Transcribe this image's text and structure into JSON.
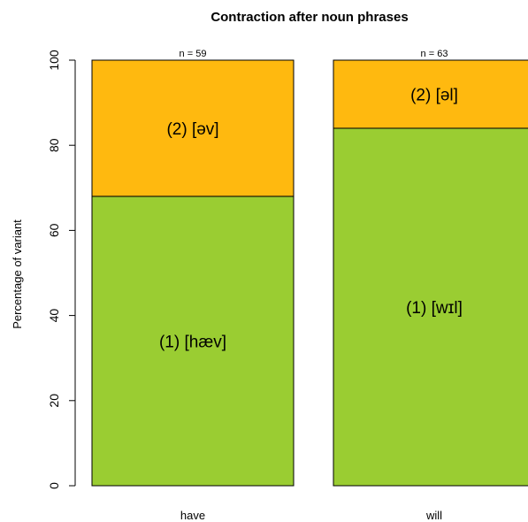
{
  "chart_data": {
    "type": "bar",
    "stacked": true,
    "title": "Contraction after noun phrases",
    "xlabel": "",
    "ylabel": "Percentage of variant",
    "ylim": [
      0,
      100
    ],
    "yticks": [
      "0",
      "20",
      "40",
      "60",
      "80",
      "100"
    ],
    "categories": [
      "have",
      "will"
    ],
    "counts": [
      "n = 59",
      "n = 63"
    ],
    "series": [
      {
        "values": [
          68,
          84
        ],
        "labels": [
          "(1) [hæv]",
          "(1) [wɪl]"
        ],
        "color": "#9acd32"
      },
      {
        "values": [
          32,
          16
        ],
        "labels": [
          "(2) [əv]",
          "(2) [əl]"
        ],
        "color": "#ffb90f"
      }
    ]
  }
}
